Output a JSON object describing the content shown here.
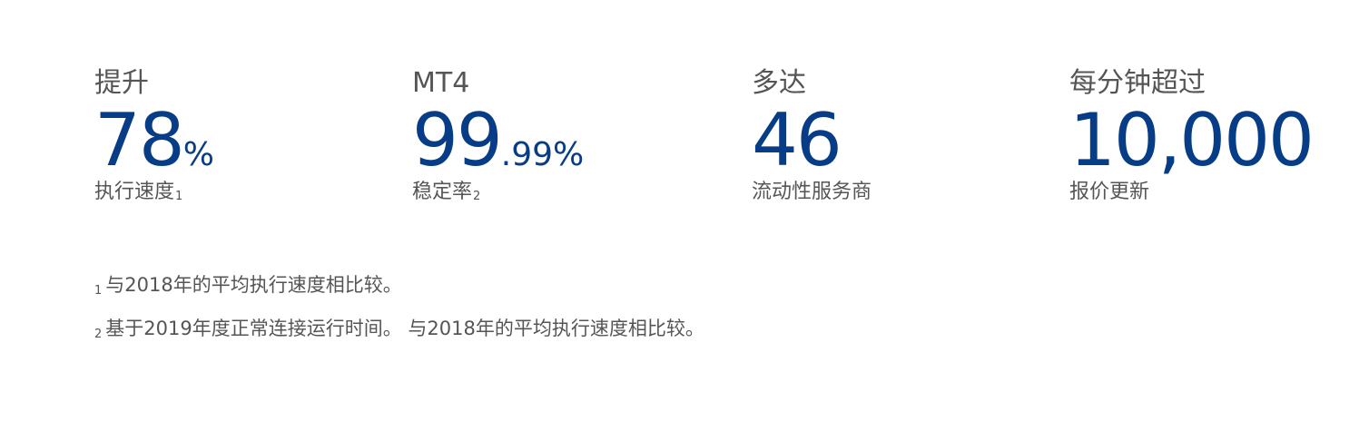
{
  "stats": [
    {
      "pre": "提升",
      "value": "78",
      "suffix": "%",
      "label": "执行速度",
      "ref": "1"
    },
    {
      "pre": "MT4",
      "value": "99",
      "suffix": ".99%",
      "label": "稳定率",
      "ref": "2"
    },
    {
      "pre": "多达",
      "value": "46",
      "suffix": "",
      "label": "流动性服务商",
      "ref": ""
    },
    {
      "pre": "每分钟超过",
      "value": "10,000",
      "suffix": "",
      "label": "报价更新",
      "ref": ""
    }
  ],
  "notes": [
    {
      "num": "1",
      "text": "与2018年的平均执行速度相比较。"
    },
    {
      "num": "2",
      "text": "基于2019年度正常连接运行时间。 与2018年的平均执行速度相比较。"
    }
  ],
  "colors": {
    "value": "#073c86",
    "text": "#555555",
    "background": "#ffffff"
  }
}
